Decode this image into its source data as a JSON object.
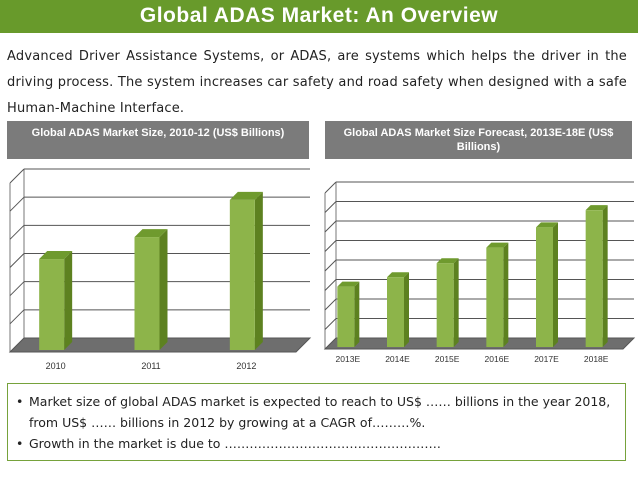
{
  "title": "Global ADAS Market: An Overview",
  "intro": "Advanced Driver Assistance Systems, or ADAS, are systems which helps the driver in the driving process. The system increases car safety and road safety when designed with a safe Human-Machine Interface.",
  "colors": {
    "title_bar": "#689a2b",
    "bar": "#8db44a",
    "bar_side": "#5d8120",
    "header": "#7b7b7b"
  },
  "chart_data": [
    {
      "type": "bar",
      "title": "Global ADAS Market Size, 2010-12 (US$ Billions)",
      "categories": [
        "2010",
        "2011",
        "2012"
      ],
      "values": [
        0.55,
        0.68,
        0.9
      ],
      "ylim": [
        0,
        1
      ],
      "grid": true,
      "xlabel": "",
      "ylabel": ""
    },
    {
      "type": "bar",
      "title": "Global ADAS Market Size Forecast, 2013E-18E (US$ Billions)",
      "categories": [
        "2013E",
        "2014E",
        "2015E",
        "2016E",
        "2017E",
        "2018E"
      ],
      "values": [
        0.4,
        0.46,
        0.55,
        0.65,
        0.78,
        0.89
      ],
      "ylim": [
        0,
        1
      ],
      "grid": true,
      "xlabel": "",
      "ylabel": ""
    }
  ],
  "notes": {
    "bullets": [
      "Market size of global ADAS market is expected to reach to US$ …… billions in the year 2018, from US$ …… billions in 2012 by growing at a CAGR of………%.",
      "Growth in the market is due to ……………………………………………."
    ]
  }
}
